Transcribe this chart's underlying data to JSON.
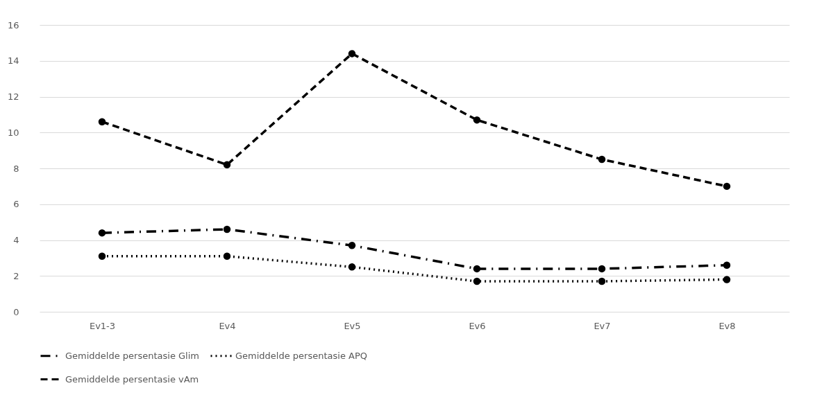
{
  "chart_data": {
    "type": "line",
    "categories": [
      "Ev1-3",
      "Ev4",
      "Ev5",
      "Ev6",
      "Ev7",
      "Ev8"
    ],
    "series": [
      {
        "name": "Gemiddelde persentasie Glim",
        "color": "#000000",
        "line_style": "dashdot",
        "values": [
          4.4,
          4.6,
          3.7,
          2.4,
          2.4,
          2.6
        ]
      },
      {
        "name": "Gemiddelde persentasie APQ",
        "color": "#000000",
        "line_style": "dotted",
        "values": [
          3.1,
          3.1,
          2.5,
          1.7,
          1.7,
          1.8
        ]
      },
      {
        "name": "Gemiddelde persentasie vAm",
        "color": "#000000",
        "line_style": "dashed",
        "values": [
          10.6,
          8.2,
          14.4,
          10.7,
          8.5,
          7.0
        ]
      }
    ],
    "ylim": [
      0,
      16
    ],
    "yticks": [
      0,
      2,
      4,
      6,
      8,
      10,
      12,
      14,
      16
    ],
    "grid": "y",
    "legend": "bottom",
    "marker": "circle"
  }
}
